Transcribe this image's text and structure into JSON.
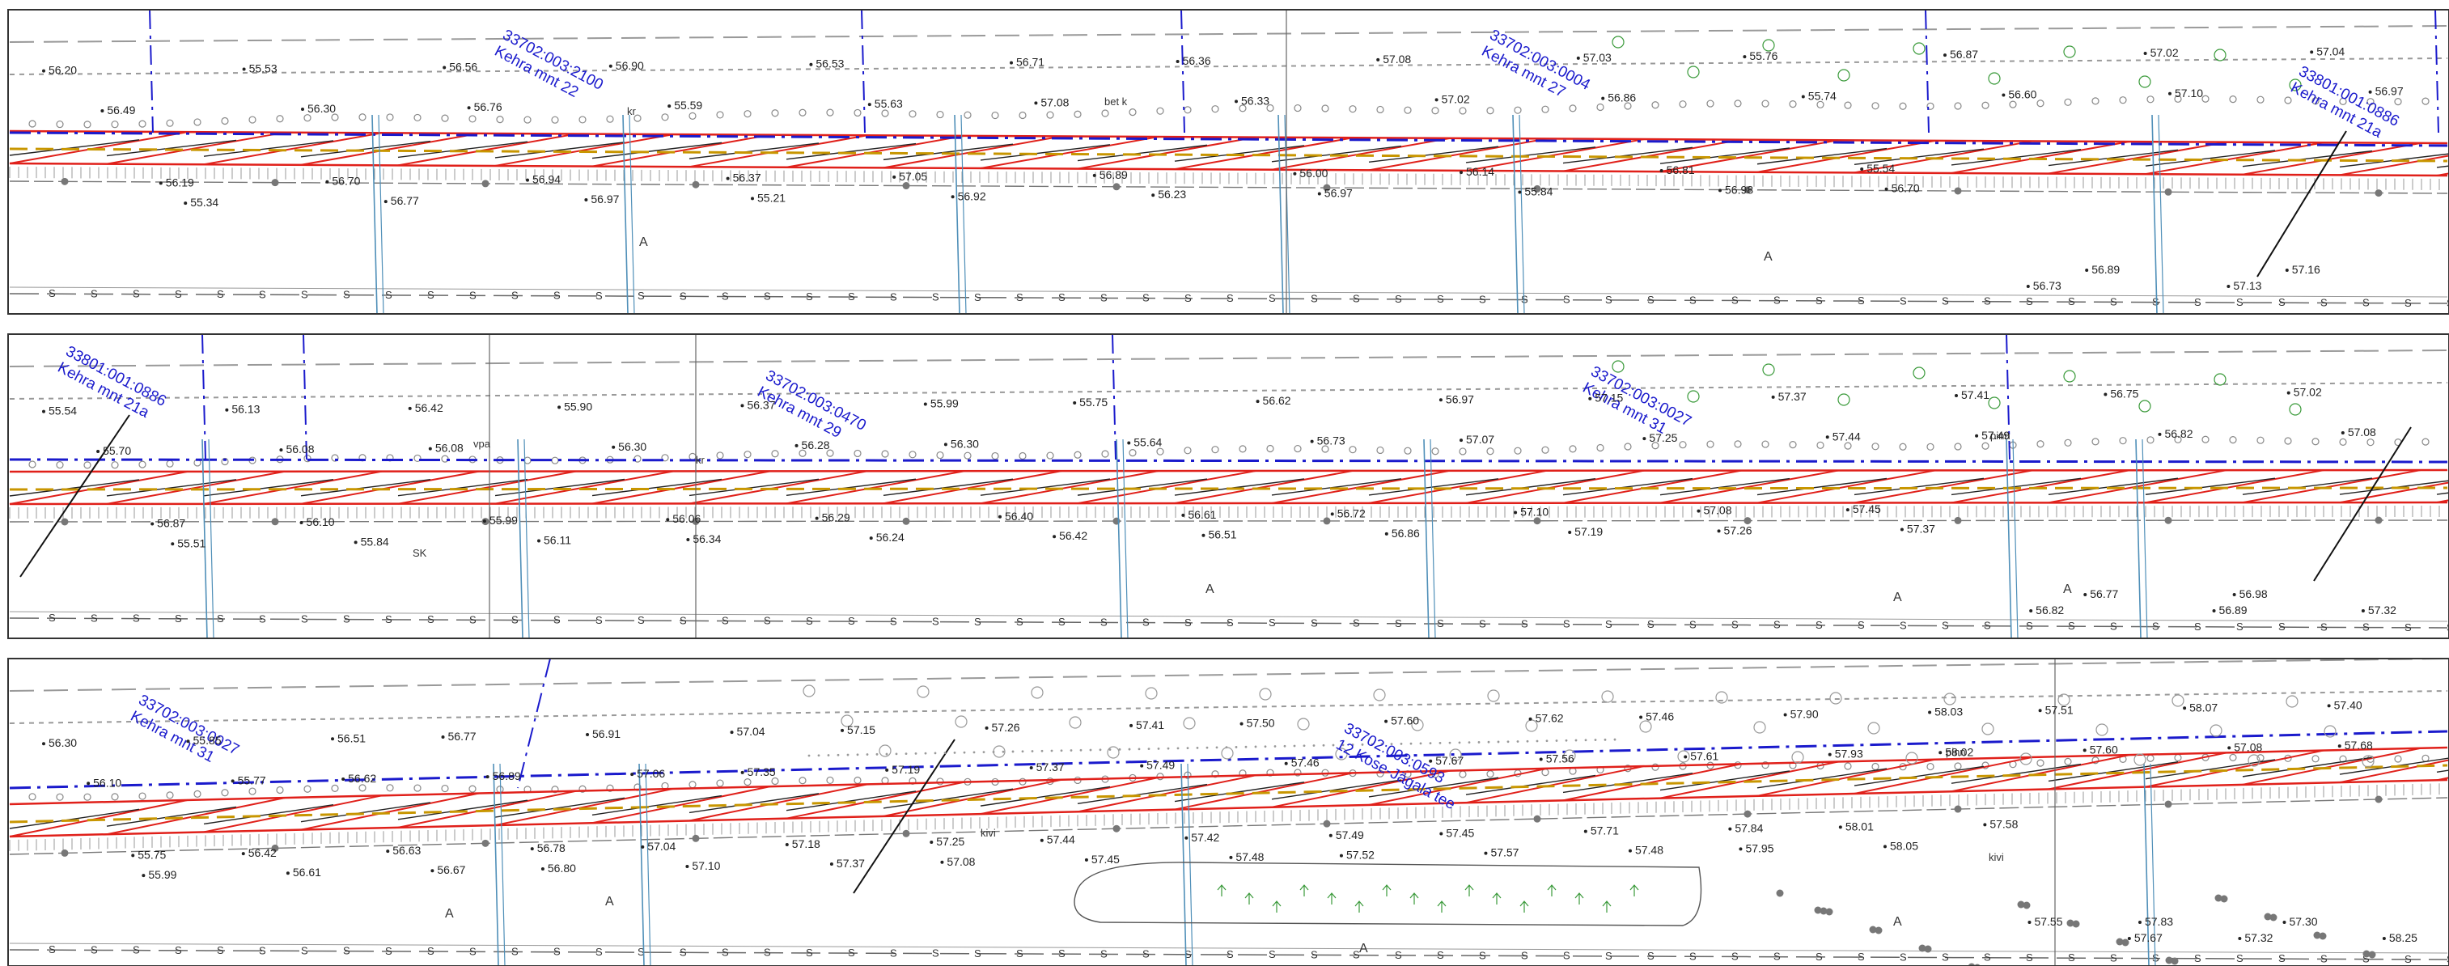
{
  "colors": {
    "background": "#ffffff",
    "frame": "#333333",
    "parcel_boundary": "#1a1acc",
    "road_design": "#e0201a",
    "curb": "#c89600",
    "utility": "#4f8fb8",
    "survey": "#888888",
    "vegetation": "#3a9a3a",
    "text": "#222222"
  },
  "panels": [
    {
      "id": "panel-1",
      "parcels": [
        {
          "code": "33702:003:2100",
          "address": "Kehra mnt 22"
        },
        {
          "code": "33702:003:0004",
          "address": "Kehra mnt 27"
        },
        {
          "code": "33801:001:0886",
          "address": "Kehra mnt 21a"
        }
      ],
      "labels": [
        "bet k",
        "A",
        "A",
        "kr"
      ],
      "elevations": [
        "56.20",
        "56.49",
        "56.19",
        "55.34",
        "55.53",
        "56.30",
        "56.70",
        "56.77",
        "56.56",
        "56.76",
        "56.94",
        "56.97",
        "56.90",
        "55.59",
        "56.37",
        "55.21",
        "56.53",
        "55.63",
        "57.05",
        "56.92",
        "56.71",
        "57.08",
        "56.89",
        "56.23",
        "56.36",
        "56.33",
        "56.00",
        "56.97",
        "57.08",
        "57.02",
        "56.14",
        "55.84",
        "57.03",
        "56.86",
        "56.81",
        "56.98",
        "55.76",
        "55.74",
        "55.54",
        "56.70",
        "56.87",
        "56.60",
        "56.73",
        "56.89",
        "57.02",
        "57.10",
        "57.13",
        "57.16",
        "57.04",
        "56.97"
      ]
    },
    {
      "id": "panel-2",
      "parcels": [
        {
          "code": "33801:001:0886",
          "address": "Kehra mnt 21a"
        },
        {
          "code": "33702:003:0470",
          "address": "Kehra mnt 29"
        },
        {
          "code": "33702:003:0027",
          "address": "Kehra mnt 31"
        }
      ],
      "labels": [
        "vpa",
        "pinn",
        "kr",
        "A",
        "A",
        "A",
        "SK"
      ],
      "elevations": [
        "55.54",
        "55.70",
        "56.87",
        "55.51",
        "56.13",
        "56.08",
        "56.10",
        "55.84",
        "56.42",
        "56.08",
        "55.99",
        "56.11",
        "55.90",
        "56.30",
        "56.06",
        "56.34",
        "56.37",
        "56.28",
        "56.29",
        "56.24",
        "55.99",
        "56.30",
        "56.40",
        "56.42",
        "55.75",
        "55.64",
        "56.61",
        "56.51",
        "56.62",
        "56.73",
        "56.72",
        "56.86",
        "56.97",
        "57.07",
        "57.10",
        "57.19",
        "57.15",
        "57.25",
        "57.08",
        "57.26",
        "57.37",
        "57.44",
        "57.45",
        "57.37",
        "57.41",
        "57.49",
        "56.82",
        "56.77",
        "56.75",
        "56.82",
        "56.89",
        "56.98",
        "57.02",
        "57.08",
        "57.32"
      ]
    },
    {
      "id": "panel-3",
      "parcels": [
        {
          "code": "33702:003:0027",
          "address": "Kehra mnt 31"
        },
        {
          "code": "33702:003:0593",
          "address": "12 Kose-Jägala tee"
        }
      ],
      "labels": [
        "pinn",
        "kivi",
        "kivi",
        "A",
        "A",
        "A",
        "A"
      ],
      "elevations": [
        "56.30",
        "56.10",
        "55.75",
        "55.99",
        "55.85",
        "55.77",
        "56.42",
        "56.61",
        "56.51",
        "56.62",
        "56.63",
        "56.67",
        "56.77",
        "56.89",
        "56.78",
        "56.80",
        "56.91",
        "57.06",
        "57.04",
        "57.10",
        "57.04",
        "57.35",
        "57.18",
        "57.37",
        "57.15",
        "57.19",
        "57.25",
        "57.08",
        "57.26",
        "57.37",
        "57.44",
        "57.45",
        "57.41",
        "57.49",
        "57.42",
        "57.48",
        "57.50",
        "57.46",
        "57.49",
        "57.52",
        "57.60",
        "57.67",
        "57.45",
        "57.57",
        "57.62",
        "57.56",
        "57.71",
        "57.48",
        "57.46",
        "57.61",
        "57.84",
        "57.95",
        "57.90",
        "57.93",
        "58.01",
        "58.05",
        "58.03",
        "58.02",
        "57.58",
        "57.55",
        "57.51",
        "57.60",
        "57.67",
        "57.83",
        "58.07",
        "57.08",
        "57.32",
        "57.30",
        "57.40",
        "57.68",
        "58.25"
      ]
    }
  ]
}
